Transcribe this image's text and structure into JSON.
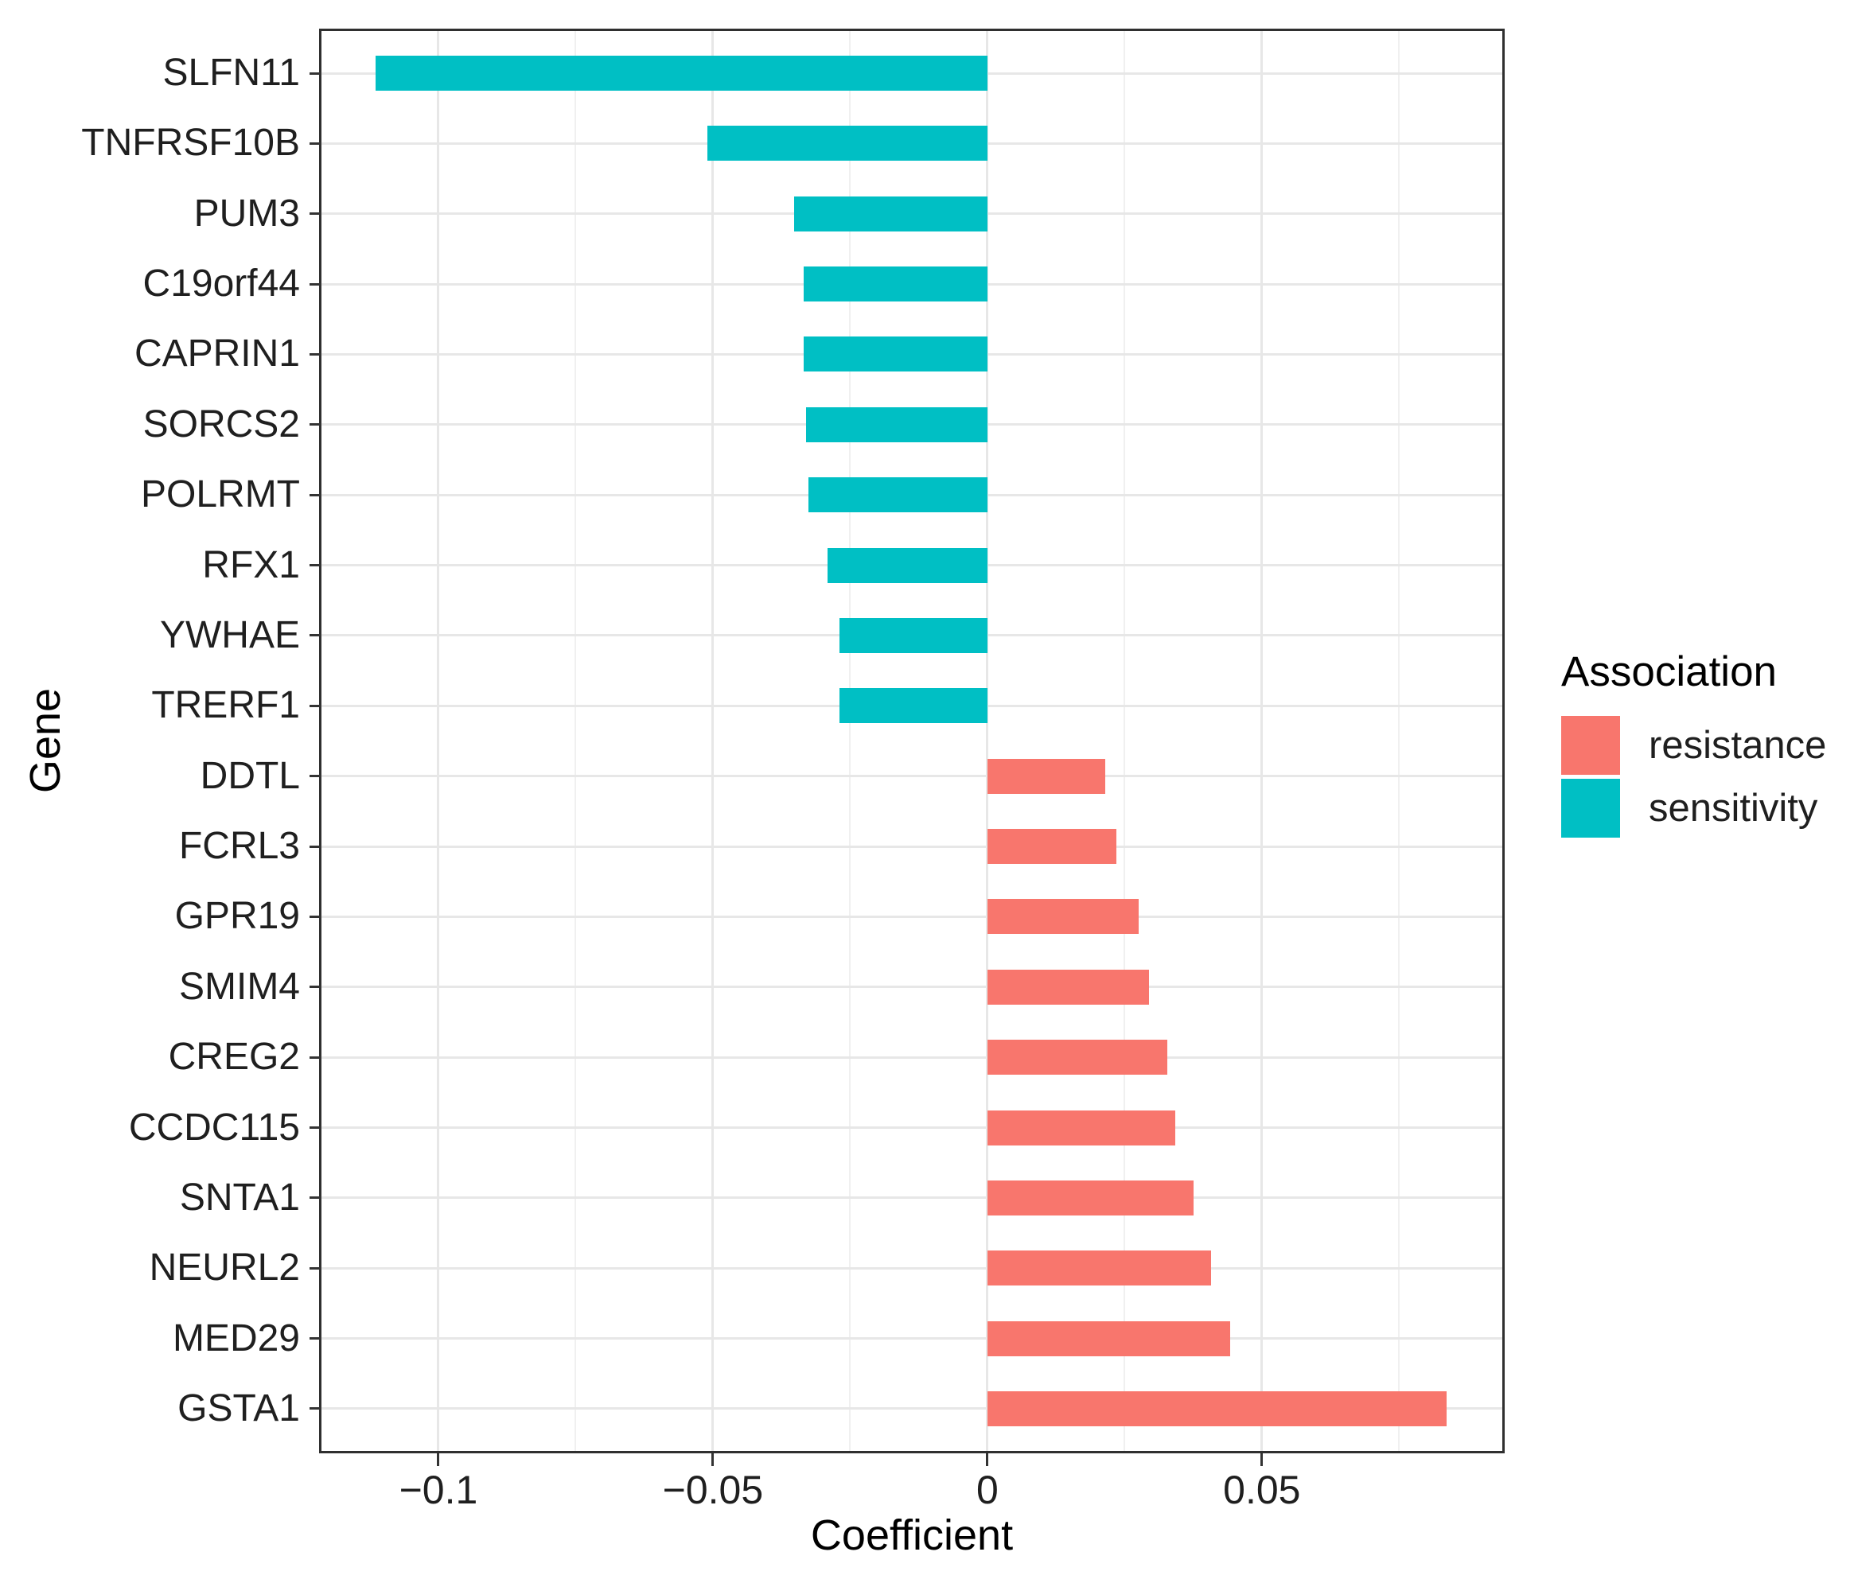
{
  "chart_data": {
    "type": "bar",
    "orientation": "horizontal",
    "title": "",
    "xlabel": "Coefficient",
    "ylabel": "Gene",
    "xlim": [
      -0.1213,
      0.0938
    ],
    "grid": true,
    "legend_position": "right",
    "x_ticks": {
      "major": [
        -0.1,
        -0.05,
        0,
        0.05
      ],
      "major_labels": [
        "−0.1",
        "−0.05",
        "0",
        "0.05"
      ],
      "minor": [
        -0.075,
        -0.025,
        0.025,
        0.075
      ]
    },
    "categories": [
      "SLFN11",
      "TNFRSF10B",
      "PUM3",
      "C19orf44",
      "CAPRIN1",
      "SORCS2",
      "POLRMT",
      "RFX1",
      "YWHAE",
      "TRERF1",
      "DDTL",
      "FCRL3",
      "GPR19",
      "SMIM4",
      "CREG2",
      "CCDC115",
      "SNTA1",
      "NEURL2",
      "MED29",
      "GSTA1"
    ],
    "bars": [
      {
        "gene": "SLFN11",
        "coefficient": -0.1114,
        "association": "sensitivity"
      },
      {
        "gene": "TNFRSF10B",
        "coefficient": -0.051,
        "association": "sensitivity"
      },
      {
        "gene": "PUM3",
        "coefficient": -0.0352,
        "association": "sensitivity"
      },
      {
        "gene": "C19orf44",
        "coefficient": -0.0335,
        "association": "sensitivity"
      },
      {
        "gene": "CAPRIN1",
        "coefficient": -0.0334,
        "association": "sensitivity"
      },
      {
        "gene": "SORCS2",
        "coefficient": -0.0331,
        "association": "sensitivity"
      },
      {
        "gene": "POLRMT",
        "coefficient": -0.0326,
        "association": "sensitivity"
      },
      {
        "gene": "RFX1",
        "coefficient": -0.0291,
        "association": "sensitivity"
      },
      {
        "gene": "YWHAE",
        "coefficient": -0.027,
        "association": "sensitivity"
      },
      {
        "gene": "TRERF1",
        "coefficient": -0.027,
        "association": "sensitivity"
      },
      {
        "gene": "DDTL",
        "coefficient": 0.0215,
        "association": "resistance"
      },
      {
        "gene": "FCRL3",
        "coefficient": 0.0235,
        "association": "resistance"
      },
      {
        "gene": "GPR19",
        "coefficient": 0.0275,
        "association": "resistance"
      },
      {
        "gene": "SMIM4",
        "coefficient": 0.0295,
        "association": "resistance"
      },
      {
        "gene": "CREG2",
        "coefficient": 0.0328,
        "association": "resistance"
      },
      {
        "gene": "CCDC115",
        "coefficient": 0.0343,
        "association": "resistance"
      },
      {
        "gene": "SNTA1",
        "coefficient": 0.0375,
        "association": "resistance"
      },
      {
        "gene": "NEURL2",
        "coefficient": 0.0408,
        "association": "resistance"
      },
      {
        "gene": "MED29",
        "coefficient": 0.0443,
        "association": "resistance"
      },
      {
        "gene": "GSTA1",
        "coefficient": 0.0836,
        "association": "resistance"
      }
    ],
    "association_colors": {
      "resistance": "#F8766D",
      "sensitivity": "#00BFC4"
    }
  },
  "legend": {
    "title": "Association",
    "items": [
      {
        "label": "resistance",
        "color": "#F8766D"
      },
      {
        "label": "sensitivity",
        "color": "#00BFC4"
      }
    ]
  }
}
